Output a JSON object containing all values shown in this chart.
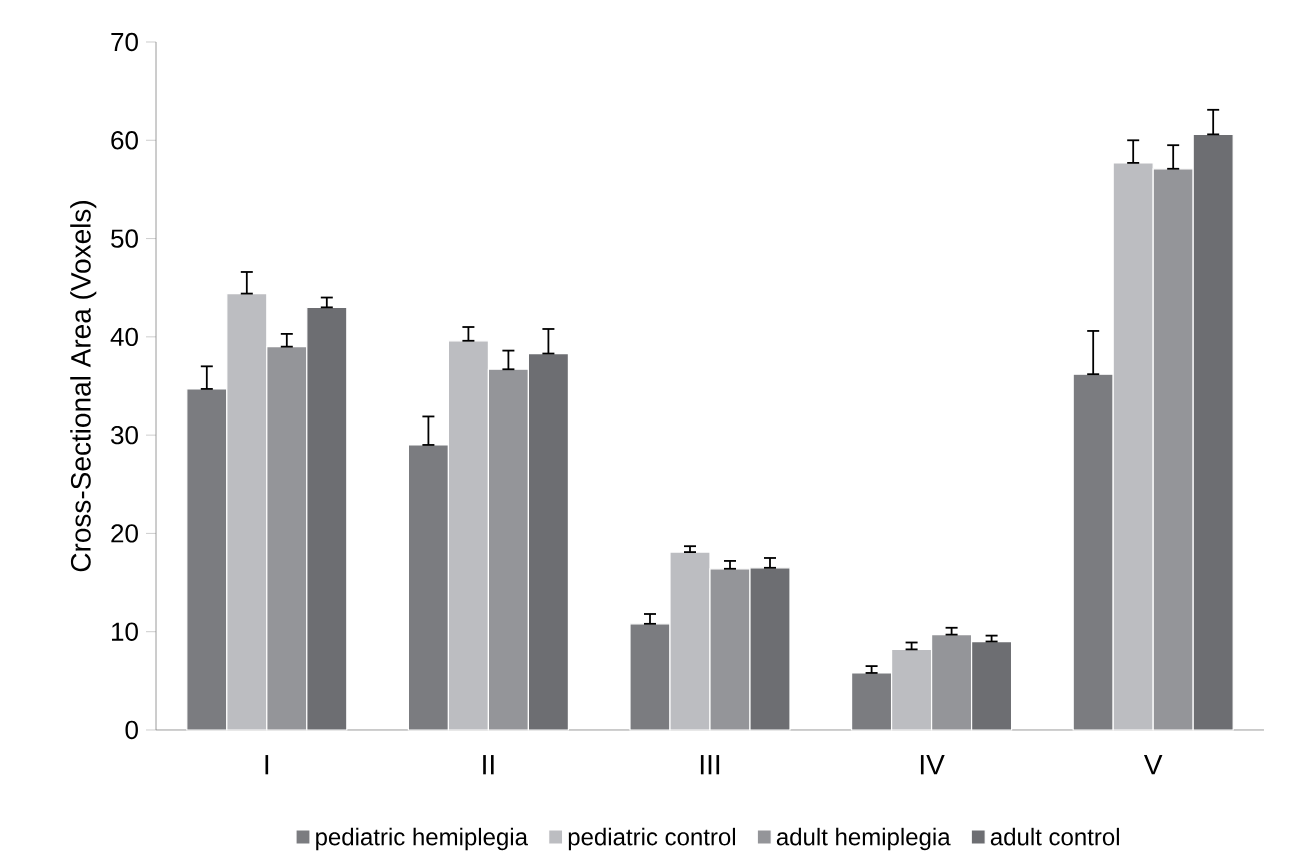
{
  "chart_data": {
    "type": "bar",
    "ylabel": "Cross-Sectional Area (Voxels)",
    "categories": [
      "I",
      "II",
      "III",
      "IV",
      "V"
    ],
    "ylim": [
      0,
      70
    ],
    "yticks": [
      0,
      10,
      20,
      30,
      40,
      50,
      60,
      70
    ],
    "grid": false,
    "legend": "bottom",
    "series": [
      {
        "name": "pediatric hemiplegia",
        "color": "#7b7c80",
        "values": [
          34.7,
          29.0,
          10.8,
          5.8,
          36.2
        ],
        "errors": [
          [
            34.7,
            37.0
          ],
          [
            29.0,
            31.9
          ],
          [
            10.8,
            11.8
          ],
          [
            5.8,
            6.5
          ],
          [
            36.2,
            40.6
          ]
        ]
      },
      {
        "name": "pediatric control",
        "color": "#bcbdc1",
        "values": [
          44.4,
          39.6,
          18.1,
          8.2,
          57.7
        ],
        "errors": [
          [
            44.4,
            46.6
          ],
          [
            39.6,
            41.0
          ],
          [
            18.1,
            18.7
          ],
          [
            8.2,
            8.9
          ],
          [
            57.7,
            60.0
          ]
        ]
      },
      {
        "name": "adult hemiplegia",
        "color": "#949599",
        "values": [
          39.0,
          36.7,
          16.4,
          9.7,
          57.1
        ],
        "errors": [
          [
            39.0,
            40.3
          ],
          [
            36.7,
            38.6
          ],
          [
            16.4,
            17.2
          ],
          [
            9.7,
            10.4
          ],
          [
            57.1,
            59.5
          ]
        ]
      },
      {
        "name": "adult control",
        "color": "#6d6e72",
        "values": [
          43.0,
          38.3,
          16.5,
          9.0,
          60.6
        ],
        "errors": [
          [
            43.0,
            44.0
          ],
          [
            38.3,
            40.8
          ],
          [
            16.5,
            17.5
          ],
          [
            9.0,
            9.6
          ],
          [
            60.6,
            63.1
          ]
        ]
      }
    ]
  }
}
